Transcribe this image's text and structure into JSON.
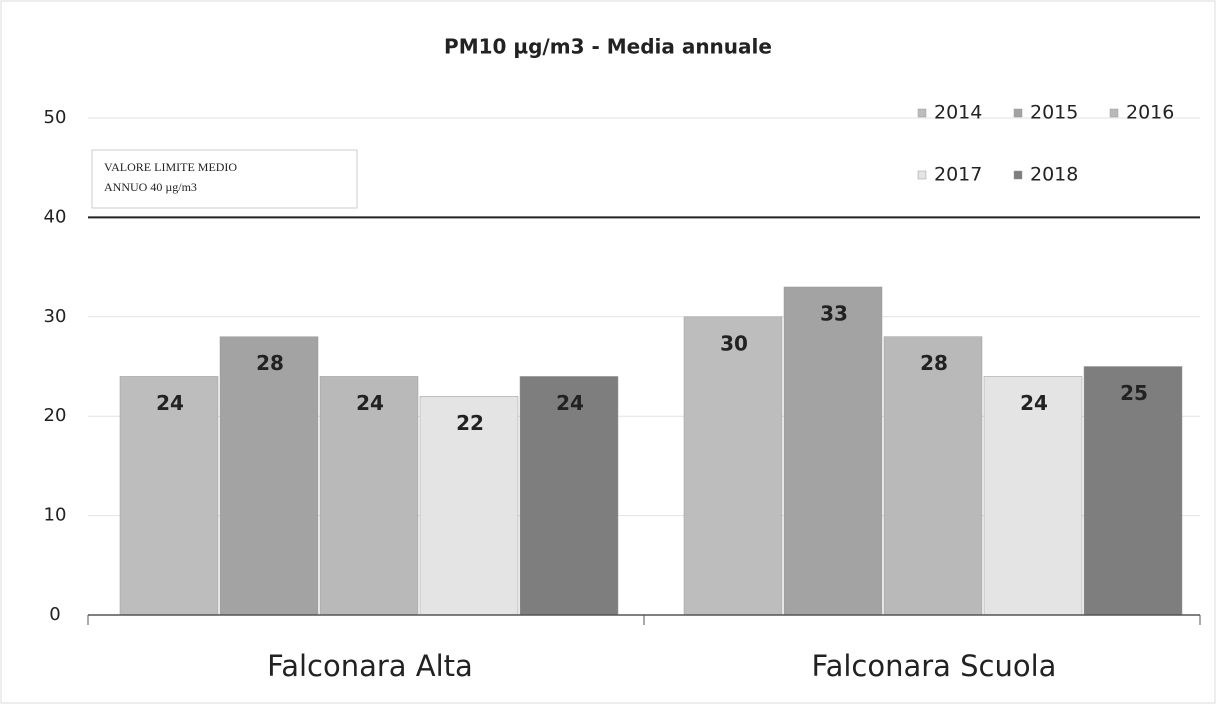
{
  "chart_data": {
    "type": "bar",
    "title": "PM10 µg/m3 - Media annuale",
    "categories": [
      "Falconara Alta",
      "Falconara Scuola"
    ],
    "series": [
      {
        "name": "2014",
        "color": "#bdbdbd",
        "values": [
          24,
          30
        ]
      },
      {
        "name": "2015",
        "color": "#a3a3a3",
        "values": [
          28,
          33
        ]
      },
      {
        "name": "2016",
        "color": "#b9b9b9",
        "values": [
          24,
          28
        ]
      },
      {
        "name": "2017",
        "color": "#e4e4e4",
        "values": [
          22,
          24
        ]
      },
      {
        "name": "2018",
        "color": "#7e7e7e",
        "values": [
          24,
          25
        ]
      }
    ],
    "ylim": [
      0,
      50
    ],
    "yticks": [
      0,
      10,
      20,
      30,
      40,
      50
    ],
    "grid": true,
    "legend": "top-right",
    "annotation": {
      "lines": [
        "VALORE LIMITE MEDIO",
        "ANNUO 40 µg/m3"
      ],
      "value": 40
    }
  }
}
